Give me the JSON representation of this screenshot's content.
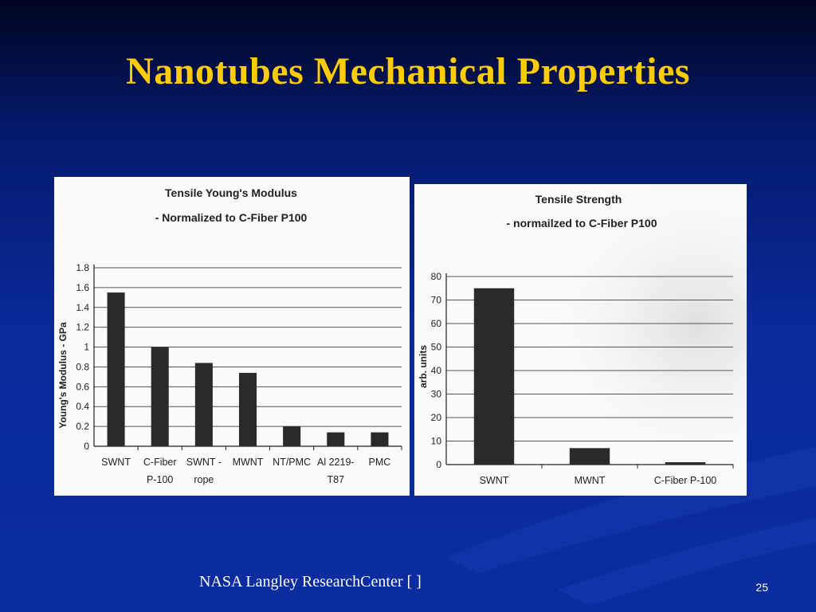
{
  "slide": {
    "title": "Nanotubes Mechanical Properties",
    "footer": "NASA Langley ResearchCenter [ ]",
    "page_number": "25",
    "colors": {
      "background": "#0a2a9a",
      "title": "#ffcc00",
      "footer": "#ffffff",
      "bars": "#2a2a2a"
    }
  },
  "chart_data": [
    {
      "type": "bar",
      "title": "Tensile Young's Modulus",
      "subtitle": "- Normalized to C-Fiber P100",
      "ylabel": "Young's Modulus - GPa",
      "xlabel": "",
      "categories": [
        [
          "SWNT"
        ],
        [
          "C-Fiber",
          "P-100"
        ],
        [
          "SWNT -",
          "rope"
        ],
        [
          "MWNT"
        ],
        [
          "NT/PMC"
        ],
        [
          "Al 2219-",
          "T87"
        ],
        [
          "PMC"
        ]
      ],
      "values": [
        1.55,
        1.0,
        0.84,
        0.74,
        0.2,
        0.14,
        0.14
      ],
      "ylim": [
        0,
        1.8
      ],
      "yticks": [
        "0",
        "0.2",
        "0.4",
        "0.6",
        "0.8",
        "1",
        "1.2",
        "1.4",
        "1.6",
        "1.8"
      ],
      "grid": true,
      "legend": "none"
    },
    {
      "type": "bar",
      "title": "Tensile Strength",
      "subtitle": "- normailzed to C-Fiber P100",
      "ylabel": "arb. units",
      "xlabel": "",
      "categories": [
        [
          "SWNT"
        ],
        [
          "MWNT"
        ],
        [
          "C-Fiber P-100"
        ]
      ],
      "values": [
        75,
        7,
        1
      ],
      "ylim": [
        0,
        80
      ],
      "yticks": [
        "0",
        "10",
        "20",
        "30",
        "40",
        "50",
        "60",
        "70",
        "80"
      ],
      "grid": true,
      "legend": "none"
    }
  ]
}
